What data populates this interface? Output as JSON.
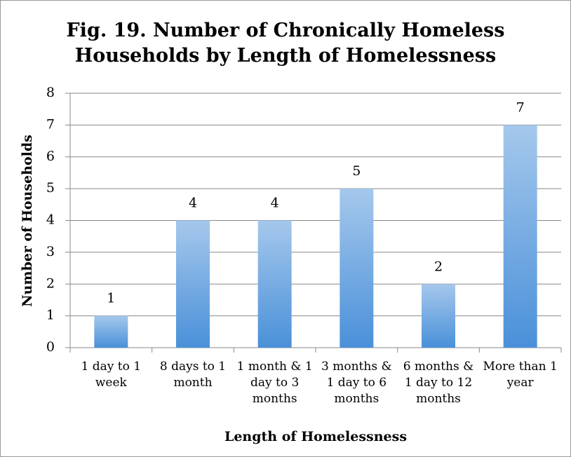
{
  "chart_data": {
    "type": "bar",
    "title": "Fig. 19. Number of Chronically Homeless Households by Length of Homelessness",
    "x_label": "Length of Homelessness",
    "y_label": "Number of Households",
    "categories": [
      "1 day to 1 week",
      "8 days to 1 month",
      "1 month & 1 day to 3 months",
      "3 months & 1 day to 6 months",
      "6 months & 1 day to 12 months",
      "More than 1 year"
    ],
    "values": [
      1,
      4,
      4,
      5,
      2,
      7
    ],
    "color": "#4a90d9",
    "ylim": [
      0,
      8
    ],
    "yticks": [
      0,
      1,
      2,
      3,
      4,
      5,
      6,
      7,
      8
    ],
    "grid": true
  }
}
